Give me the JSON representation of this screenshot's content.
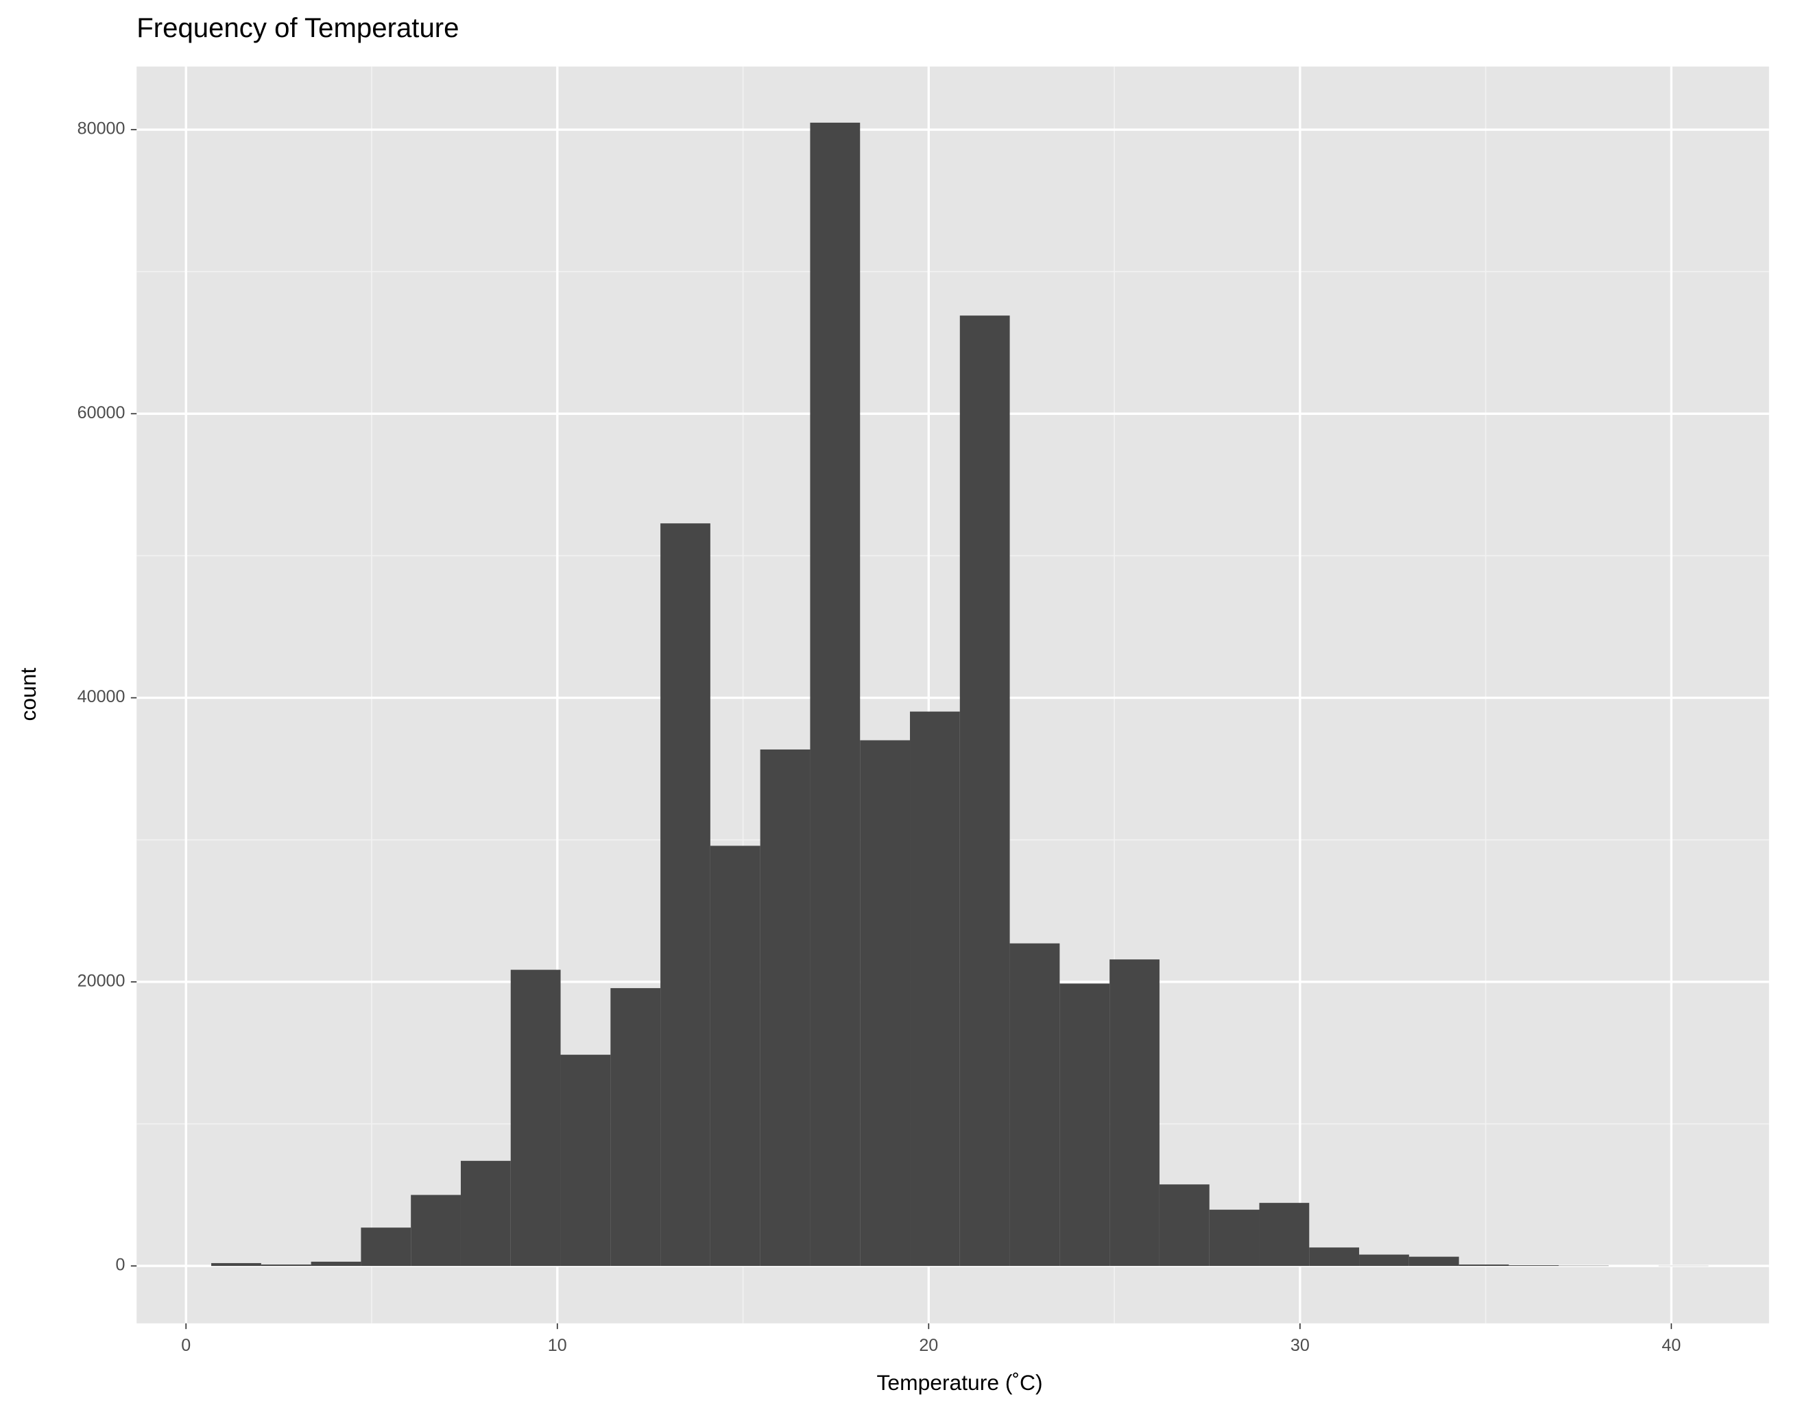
{
  "chart_data": {
    "type": "histogram",
    "title": "Frequency of Temperature",
    "x_label": "Temperature (˚C)",
    "y_label": "count",
    "bins": [
      0.68,
      2.024,
      3.368,
      4.712,
      6.056,
      7.4,
      8.744,
      10.088,
      11.432,
      12.776,
      14.12,
      15.464,
      16.808,
      18.152,
      19.496,
      20.84,
      22.184,
      23.528,
      24.872,
      26.216,
      27.56,
      28.904,
      30.248,
      31.592,
      32.936,
      34.28,
      35.624,
      36.968,
      38.312,
      39.656,
      41.0
    ],
    "values": [
      200,
      100,
      300,
      2700,
      5000,
      7400,
      20850,
      14870,
      19560,
      52280,
      29580,
      36360,
      80490,
      37010,
      39030,
      66910,
      22710,
      19880,
      21580,
      5740,
      3960,
      4440,
      1300,
      800,
      650,
      100,
      50,
      20,
      0,
      10
    ],
    "color": "#474747",
    "xlim": [
      -1.33,
      42.63
    ],
    "xticks": [
      0,
      10,
      20,
      30,
      40
    ],
    "ylim": [
      -4040,
      84440
    ],
    "yticks": [
      0,
      20000,
      40000,
      60000,
      80000
    ],
    "grid": true,
    "minor_grid": true
  }
}
